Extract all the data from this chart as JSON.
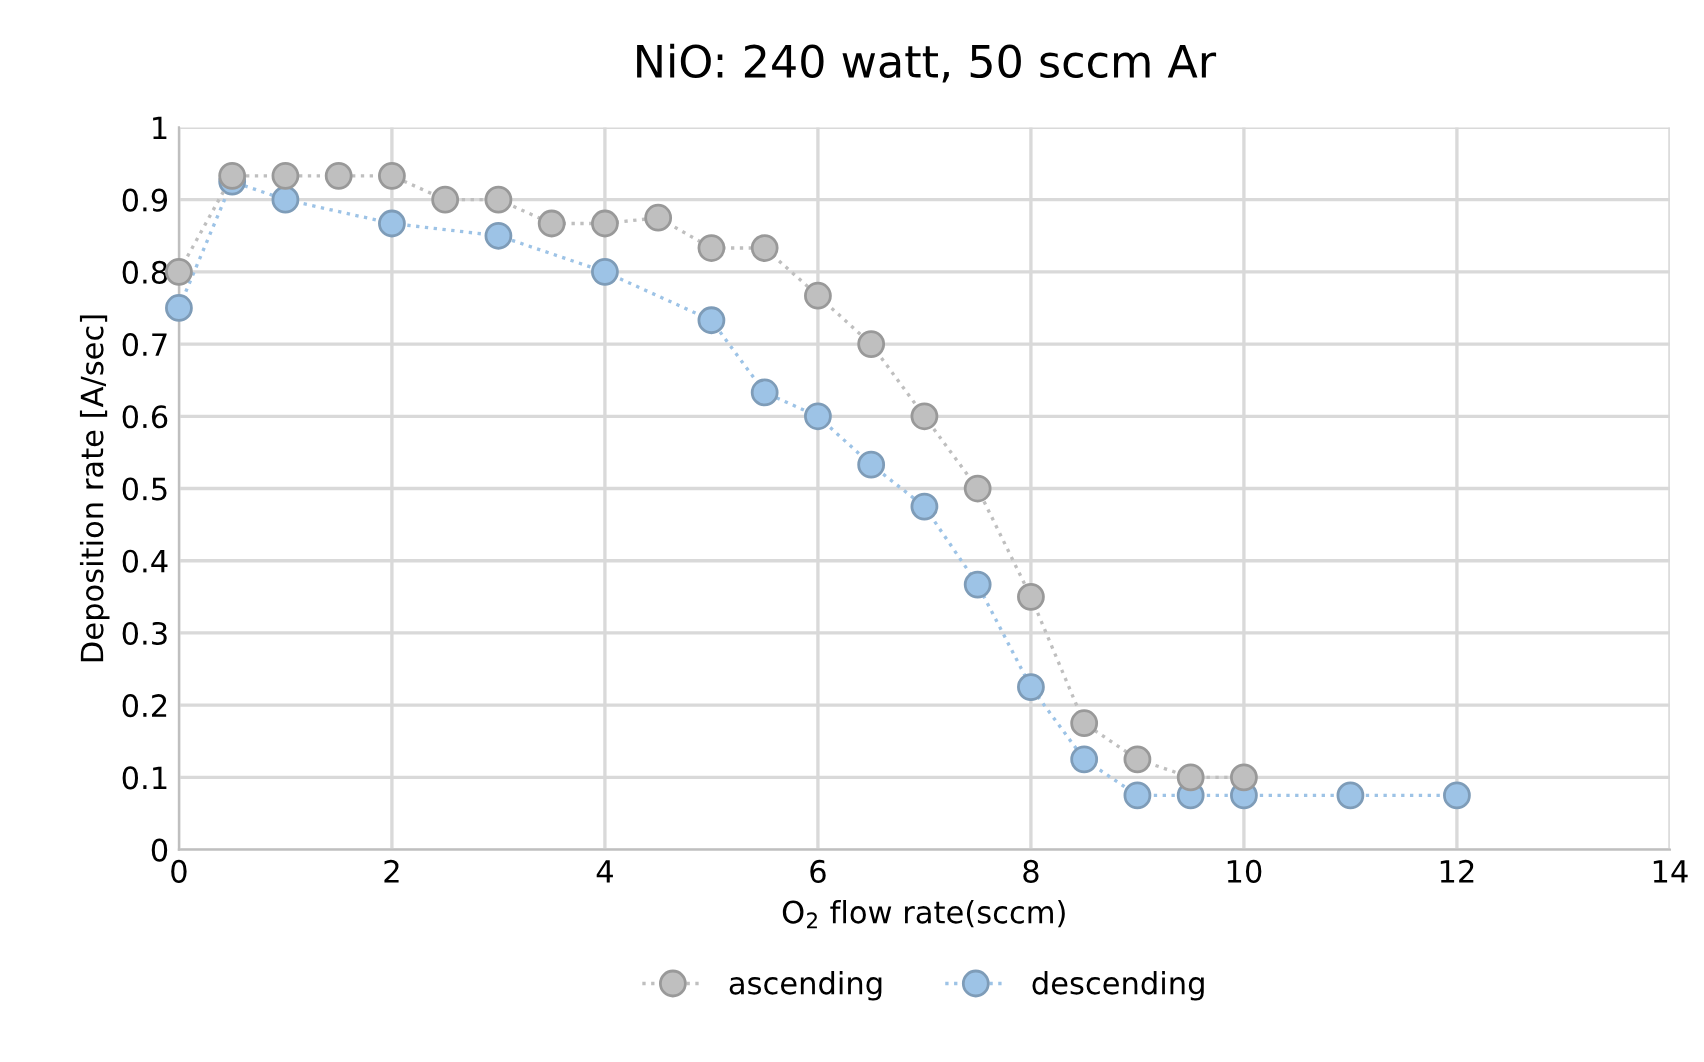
{
  "chart_data": {
    "type": "line",
    "title": "NiO: 240 watt, 50 sccm Ar",
    "xlabel": "O$_{2}$ flow rate(sccm)",
    "ylabel": "Deposition rate [A/sec]",
    "xlim": [
      0,
      14
    ],
    "xticks": [
      0,
      2,
      4,
      6,
      8,
      10,
      12,
      14
    ],
    "ylim": [
      0,
      1
    ],
    "yticks": [
      0,
      0.1,
      0.2,
      0.3,
      0.4,
      0.5,
      0.6,
      0.7,
      0.8,
      0.9,
      1
    ],
    "grid": true,
    "legend": "bottom",
    "marker": "circle",
    "line_style": "dotted",
    "series": [
      {
        "name": "ascending",
        "color": "#bfbfbf",
        "x": [
          0,
          0.5,
          1,
          1.5,
          2,
          2.5,
          3,
          3.5,
          4,
          4.5,
          5,
          5.5,
          6,
          6.5,
          7,
          7.5,
          8,
          8.5,
          9,
          9.5,
          10
        ],
        "values": [
          0.8,
          0.933,
          0.933,
          0.933,
          0.933,
          0.9,
          0.9,
          0.867,
          0.867,
          0.875,
          0.833,
          0.833,
          0.767,
          0.7,
          0.6,
          0.5,
          0.35,
          0.175,
          0.125,
          0.1,
          0.1
        ]
      },
      {
        "name": "descending",
        "color": "#9dc3e6",
        "x": [
          0,
          0.5,
          1,
          2,
          3,
          4,
          5,
          5.5,
          6,
          6.5,
          7,
          7.5,
          8,
          8.5,
          9,
          9.5,
          10,
          11,
          12
        ],
        "values": [
          0.75,
          0.925,
          0.9,
          0.867,
          0.85,
          0.8,
          0.733,
          0.633,
          0.6,
          0.533,
          0.475,
          0.367,
          0.225,
          0.125,
          0.075,
          0.075,
          0.075,
          0.075,
          0.075
        ]
      }
    ]
  }
}
